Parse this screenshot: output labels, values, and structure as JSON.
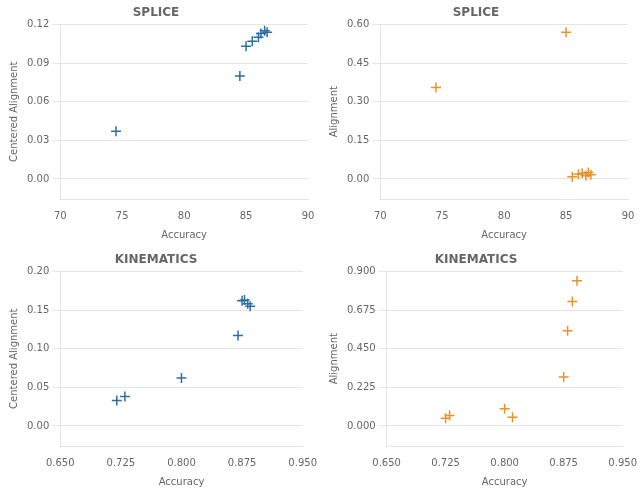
{
  "chart_data": [
    {
      "type": "scatter",
      "title": "SPLICE",
      "xlabel": "Accuracy",
      "ylabel": "Centered Alignment",
      "x": [
        74.5,
        84.5,
        85.0,
        85.5,
        86.0,
        86.2,
        86.5,
        86.7
      ],
      "values": [
        0.037,
        0.08,
        0.103,
        0.107,
        0.11,
        0.113,
        0.115,
        0.114
      ],
      "color": "#2e6da4",
      "marker": "+",
      "xlim": [
        70,
        90
      ],
      "xticks": [
        70,
        75,
        80,
        85,
        90
      ],
      "ylim": [
        -0.0156,
        0.12
      ],
      "yticks": [
        {
          "value": 0,
          "label": "0.00"
        },
        {
          "value": 0.03,
          "label": "0.03"
        },
        {
          "value": 0.06,
          "label": "0.06"
        },
        {
          "value": 0.09,
          "label": "0.09"
        },
        {
          "value": 0.12,
          "label": "0.12"
        }
      ],
      "grid": "y"
    },
    {
      "type": "scatter",
      "title": "SPLICE",
      "xlabel": "Accuracy",
      "ylabel": "Alignment",
      "x": [
        74.5,
        85.0,
        85.5,
        86.0,
        86.3,
        86.6,
        86.8,
        87.0
      ],
      "values": [
        0.355,
        0.57,
        0.008,
        0.018,
        0.022,
        0.012,
        0.025,
        0.016
      ],
      "color": "#e8922a",
      "marker": "+",
      "xlim": [
        70,
        90
      ],
      "xticks": [
        70,
        75,
        80,
        85,
        90
      ],
      "ylim": [
        -0.078,
        0.6
      ],
      "yticks": [
        {
          "value": 0,
          "label": "0.00"
        },
        {
          "value": 0.15,
          "label": "0.15"
        },
        {
          "value": 0.3,
          "label": "0.30"
        },
        {
          "value": 0.45,
          "label": "0.45"
        },
        {
          "value": 0.6,
          "label": "0.60"
        }
      ],
      "grid": "y"
    },
    {
      "type": "scatter",
      "title": "KINEMATICS",
      "xlabel": "Accuracy",
      "ylabel": "Centered Alignment",
      "x": [
        0.72,
        0.73,
        0.8,
        0.87,
        0.875,
        0.878,
        0.882,
        0.885
      ],
      "values": [
        0.033,
        0.038,
        0.062,
        0.117,
        0.162,
        0.163,
        0.158,
        0.155
      ],
      "color": "#2e6da4",
      "marker": "+",
      "xlim": [
        0.65,
        0.95
      ],
      "xticks": [
        {
          "value": 0.65,
          "label": "0.650"
        },
        {
          "value": 0.725,
          "label": "0.725"
        },
        {
          "value": 0.8,
          "label": "0.800"
        },
        {
          "value": 0.875,
          "label": "0.875"
        },
        {
          "value": 0.95,
          "label": "0.950"
        }
      ],
      "ylim": [
        -0.026,
        0.2
      ],
      "yticks": [
        {
          "value": 0,
          "label": "0.00"
        },
        {
          "value": 0.05,
          "label": "0.05"
        },
        {
          "value": 0.1,
          "label": "0.10"
        },
        {
          "value": 0.15,
          "label": "0.15"
        },
        {
          "value": 0.2,
          "label": "0.20"
        }
      ],
      "grid": "y"
    },
    {
      "type": "scatter",
      "title": "KINEMATICS",
      "xlabel": "Accuracy",
      "ylabel": "Alignment",
      "x": [
        0.725,
        0.73,
        0.8,
        0.81,
        0.875,
        0.88,
        0.886,
        0.892
      ],
      "values": [
        0.045,
        0.06,
        0.1,
        0.05,
        0.285,
        0.555,
        0.725,
        0.845
      ],
      "color": "#e8922a",
      "marker": "+",
      "xlim": [
        0.65,
        0.95
      ],
      "xticks": [
        {
          "value": 0.65,
          "label": "0.650"
        },
        {
          "value": 0.725,
          "label": "0.725"
        },
        {
          "value": 0.8,
          "label": "0.800"
        },
        {
          "value": 0.875,
          "label": "0.875"
        },
        {
          "value": 0.95,
          "label": "0.950"
        }
      ],
      "ylim": [
        -0.117,
        0.9
      ],
      "yticks": [
        {
          "value": 0,
          "label": "0.000"
        },
        {
          "value": 0.225,
          "label": "0.225"
        },
        {
          "value": 0.45,
          "label": "0.450"
        },
        {
          "value": 0.675,
          "label": "0.675"
        },
        {
          "value": 0.9,
          "label": "0.900"
        }
      ],
      "grid": "y"
    }
  ]
}
